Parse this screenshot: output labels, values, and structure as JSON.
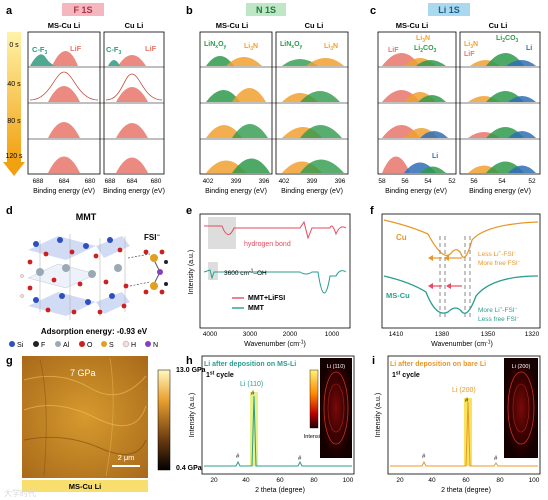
{
  "panel_a": {
    "letter": "a",
    "title": "F 1S",
    "col_left": "MS-Cu Li",
    "col_right": "Cu Li",
    "times": [
      "0 s",
      "40 s",
      "80 s",
      "120 s"
    ],
    "peak1": "C-F",
    "peak1_sub": "3",
    "peak2": "LiF",
    "xticks_left": [
      "688",
      "684",
      "680"
    ],
    "xticks_right": [
      "688",
      "684",
      "680"
    ],
    "xlabel": "Binding energy (eV)",
    "colors": {
      "title_bg": "#f4b7c0",
      "lif": "#e8766a",
      "cf3": "#2e9a7e"
    }
  },
  "panel_b": {
    "letter": "b",
    "title": "N 1S",
    "col_left": "MS-Cu Li",
    "col_right": "Cu Li",
    "label1": "LiN",
    "label1_sub1": "x",
    "label1_mid": "O",
    "label1_sub2": "y",
    "label2": "Li",
    "label2_sub": "3",
    "label2_tail": "N",
    "xticks_left": [
      "402",
      "399",
      "396"
    ],
    "xticks_right": [
      "402",
      "399",
      "396"
    ],
    "xlabel": "Binding energy (eV)",
    "colors": {
      "title_bg": "#bfe7c5",
      "green": "#2e9a4a",
      "orange": "#f0a030"
    }
  },
  "panel_c": {
    "letter": "c",
    "title": "Li 1S",
    "col_left": "MS-Cu Li",
    "col_right": "Cu Li",
    "l_lif": "LiF",
    "l_li3n": "Li",
    "l_li3n_sub": "3",
    "l_li3n_tail": "N",
    "l_li2co3": "Li",
    "l_li2co3_sub": "2",
    "l_li2co3_tail": "CO",
    "l_li2co3_sub2": "3",
    "l_li": "Li",
    "xticks_left": [
      "58",
      "56",
      "54",
      "52"
    ],
    "xticks_right": [
      "56",
      "54",
      "52"
    ],
    "xlabel": "Binding energy (eV)",
    "colors": {
      "title_bg": "#a9d8ef",
      "blue": "#2f6fb5"
    }
  },
  "panel_d": {
    "letter": "d",
    "title": "MMT",
    "fsi": "FSI",
    "fsi_sup": "−",
    "adsorption": "Adsorption energy: -0.93 eV",
    "legend": [
      {
        "symbol": "Si",
        "color": "#2d4fbf"
      },
      {
        "symbol": "F",
        "color": "#222222"
      },
      {
        "symbol": "Al",
        "color": "#9aa9b6"
      },
      {
        "symbol": "O",
        "color": "#cc1f1f"
      },
      {
        "symbol": "S",
        "color": "#e0a020"
      },
      {
        "symbol": "H",
        "color": "#f2dcdc"
      },
      {
        "symbol": "N",
        "color": "#8a3fbf"
      }
    ]
  },
  "panel_e": {
    "letter": "e",
    "annotation1": "hydrogen bond",
    "annotation2": "3600 cm",
    "annotation2_sup": "-1",
    "annotation2_tail": "–OH",
    "legend": [
      "MMT+LiFSI",
      "MMT"
    ],
    "xticks": [
      "4000",
      "3000",
      "2000",
      "1000"
    ],
    "xlabel": "Wavenumber (cm",
    "xlabel_sup": "-1",
    "xlabel_tail": ")",
    "ylabel": "Intensity (a.u.)",
    "colors": {
      "mmt_lifsi": "#e84a5f",
      "mmt": "#2a9d8f"
    }
  },
  "panel_f": {
    "letter": "f",
    "label_cu": "Cu",
    "label_mscu": "MS-Cu",
    "ann_cu_1": "Less Li",
    "ann_cu_1_sup": "+",
    "ann_cu_1_tail": "-FSI",
    "ann_cu_1_sup2": "−",
    "ann_cu_2": "More free FSI",
    "ann_cu_2_sup": "−",
    "ann_ms_1": "More Li",
    "ann_ms_1_sup": "+",
    "ann_ms_1_tail": "-FSI",
    "ann_ms_1_sup2": "−",
    "ann_ms_2": "Less free FSI",
    "ann_ms_2_sup": "−",
    "xticks": [
      "1410",
      "1380",
      "1350",
      "1320"
    ],
    "xlabel": "Wavenumber (cm",
    "xlabel_sup": "-1",
    "xlabel_tail": ")",
    "colors": {
      "cu": "#e8982a",
      "mscu": "#2a9d8f"
    }
  },
  "panel_g": {
    "letter": "g",
    "value_label": "7 GPa",
    "scale_bar": "2 μm",
    "sample": "MS-Cu Li",
    "colorbar_max": "13.0 GPa",
    "colorbar_min": "0.4 GPa",
    "watermark": "大学时代"
  },
  "panel_h": {
    "letter": "h",
    "title": "Li after deposition on MS-Li",
    "cycle": "1",
    "cycle_sup": "st",
    "cycle_tail": " cycle",
    "peak_label": "Li (110)",
    "inset_label": "Li (110)",
    "hash": "#",
    "colorbar_label": "Intensity",
    "xticks": [
      "20",
      "40",
      "60",
      "80",
      "100"
    ],
    "xlabel": "2 theta (degree)",
    "ylabel": "Intensity (a.u.)",
    "colors": {
      "title": "#2a9d8f",
      "line": "#2a9d8f",
      "peak_band": "#e6f07a"
    }
  },
  "panel_i": {
    "letter": "i",
    "title": "Li after deposition on bare Li",
    "cycle": "1",
    "cycle_sup": "st",
    "cycle_tail": " cycle",
    "peak_label": "Li (200)",
    "inset_label": "Li (200)",
    "hash": "#",
    "xticks": [
      "20",
      "40",
      "60",
      "80",
      "100"
    ],
    "xlabel": "2 theta (degree)",
    "ylabel": "Intensity (a.u.)",
    "colors": {
      "title": "#e8982a",
      "line": "#e8982a",
      "peak_band": "#f7e04a"
    }
  }
}
